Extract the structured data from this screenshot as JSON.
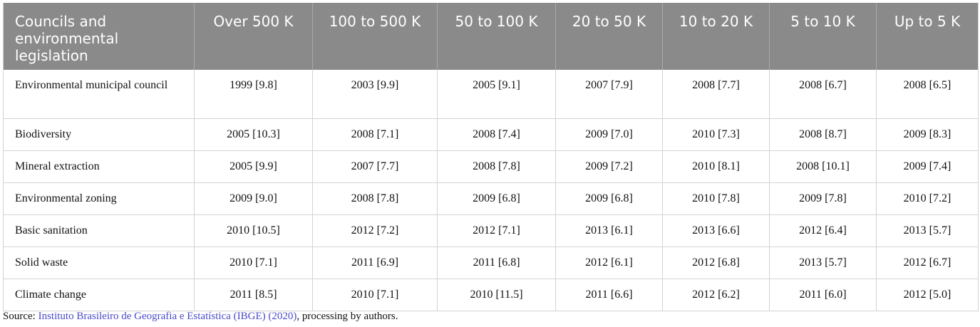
{
  "table": {
    "headers": [
      "Councils and environmental legislation",
      "Over 500 K",
      "100 to 500 K",
      "50 to 100 K",
      "20 to 50 K",
      "10 to 20 K",
      "5 to 10 K",
      "Up to 5 K"
    ],
    "rows": [
      [
        "Environmental municipal council",
        "1999 [9.8]",
        "2003 [9.9]",
        "2005 [9.1]",
        "2007 [7.9]",
        "2008 [7.7]",
        "2008 [6.7]",
        "2008 [6.5]"
      ],
      [
        "Biodiversity",
        "2005 [10.3]",
        "2008 [7.1]",
        "2008 [7.4]",
        "2009 [7.0]",
        "2010 [7.3]",
        "2008 [8.7]",
        "2009 [8.3]"
      ],
      [
        "Mineral extraction",
        "2005 [9.9]",
        "2007 [7.7]",
        "2008 [7.8]",
        "2009 [7.2]",
        "2010 [8.1]",
        "2008 [10.1]",
        "2009 [7.4]"
      ],
      [
        "Environmental zoning",
        "2009 [9.0]",
        "2008 [7.8]",
        "2009 [6.8]",
        "2009 [6.8]",
        "2010 [7.8]",
        "2009 [7.8]",
        "2010 [7.2]"
      ],
      [
        "Basic sanitation",
        "2010 [10.5]",
        "2012 [7.2]",
        "2012 [7.1]",
        "2013 [6.1]",
        "2013 [6.6]",
        "2012 [6.4]",
        "2013 [5.7]"
      ],
      [
        "Solid waste",
        "2010 [7.1]",
        "2011 [6.9]",
        "2011 [6.8]",
        "2012 [6.1]",
        "2012 [6.8]",
        "2013 [5.7]",
        "2012 [6.7]"
      ],
      [
        "Climate change",
        "2011 [8.5]",
        "2010 [7.1]",
        "2010 [11.5]",
        "2011 [6.6]",
        "2012 [6.2]",
        "2011 [6.0]",
        "2012 [5.0]"
      ]
    ]
  },
  "source": {
    "prefix": "Source: ",
    "link": "Instituto Brasileiro de Geografia e Estatística (IBGE) (2020)",
    "suffix": ", processing by authors."
  },
  "colors": {
    "header_bg": "#8a8a8a",
    "link": "#4a4acb"
  }
}
